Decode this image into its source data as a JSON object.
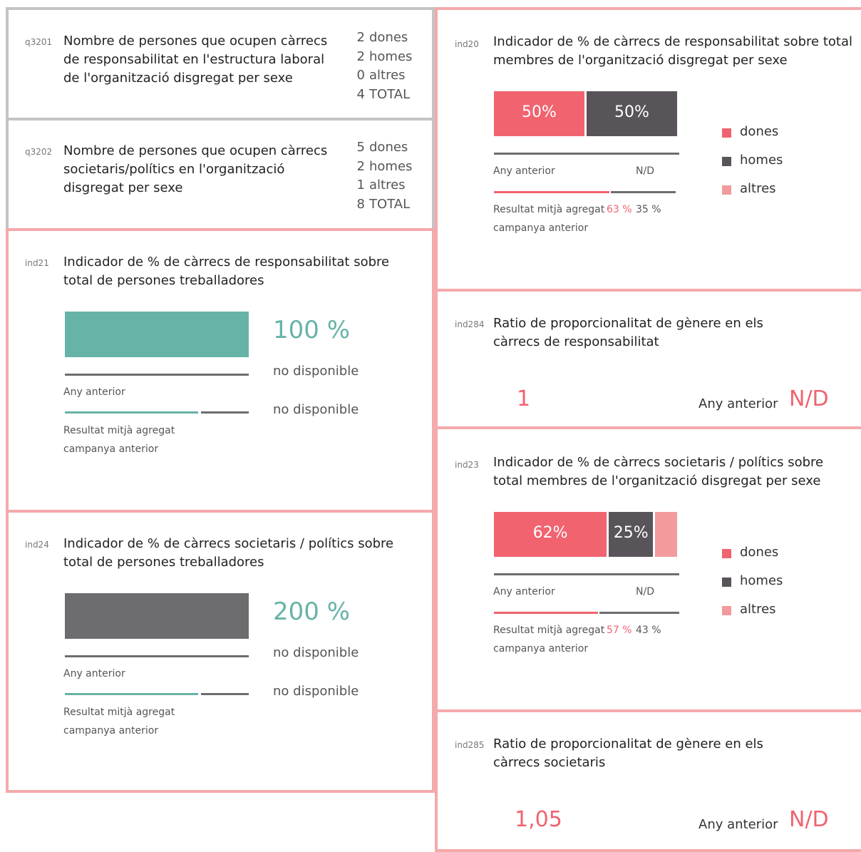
{
  "questions": [
    {
      "code": "q3201",
      "text": "Nombre de persones que ocupen càrrecs de responsabilitat en l'estructura laboral de l'organització disgregat per sexe",
      "rows": [
        {
          "value": 2,
          "label": "dones"
        },
        {
          "value": 2,
          "label": "homes"
        },
        {
          "value": 0,
          "label": "altres"
        },
        {
          "value": 4,
          "label": "TOTAL"
        }
      ]
    },
    {
      "code": "q3202",
      "text": "Nombre de persones que ocupen càrrecs societaris/polítics en l'organització disgregat per sexe",
      "rows": [
        {
          "value": 5,
          "label": "dones"
        },
        {
          "value": 2,
          "label": "homes"
        },
        {
          "value": 1,
          "label": "altres"
        },
        {
          "value": 8,
          "label": "TOTAL"
        }
      ]
    }
  ],
  "single_indicators": [
    {
      "code": "ind21",
      "title": "Indicador de % de càrrecs de responsabilitat sobre total de persones treballadores",
      "value": {
        "value": 100,
        "label": "100 %"
      },
      "color": "#67b3a8",
      "previous_year": "Any anterior",
      "previous_value": "no disponible",
      "average": "Resultat mitjà agregat",
      "average_sub": "campanya anterior",
      "average_value": "no disponible"
    },
    {
      "code": "ind24",
      "title": "Indicador de % de càrrecs societaris / polítics sobre total de persones treballadores",
      "value": {
        "value": 200,
        "label": "200 %"
      },
      "color": "#6d6d70",
      "previous_year": "Any anterior",
      "previous_value": "no disponible",
      "average": "Resultat mitjà agregat",
      "average_sub": "campanya anterior",
      "average_value": "no disponible"
    }
  ],
  "gender_indicators": [
    {
      "code": "ind20",
      "title": "Indicador de % de càrrecs de responsabilitat sobre total membres de l'organització disgregat per sexe",
      "segments": [
        {
          "name": "dones",
          "color": "#f0636f",
          "value": 50,
          "label": "50%"
        },
        {
          "name": "homes",
          "color": "#58545a",
          "value": 50,
          "label": "50%"
        },
        {
          "name": "altres",
          "color": "#f29a9c",
          "value": 0,
          "label": null
        }
      ],
      "previous_year": "Any anterior",
      "previous_value": "N/D",
      "average": "Resultat mitjà agregat",
      "average_sub": "campanya anterior",
      "average_values": [
        {
          "value": 63,
          "label": "63 %"
        },
        {
          "value": 35,
          "label": "35 %"
        }
      ]
    },
    {
      "code": "ind23",
      "title": "Indicador de % de càrrecs societaris / polítics sobre total membres de l'organització disgregat per sexe",
      "segments": [
        {
          "name": "dones",
          "color": "#f0636f",
          "value": 62,
          "label": "62%"
        },
        {
          "name": "homes",
          "color": "#58545a",
          "value": 25,
          "label": "25%"
        },
        {
          "name": "altres",
          "color": "#f29a9c",
          "value": 13,
          "label": null
        }
      ],
      "previous_year": "Any anterior",
      "previous_value": "N/D",
      "average": "Resultat mitjà agregat",
      "average_sub": "campanya anterior",
      "average_values": [
        {
          "value": 57,
          "label": "57 %"
        },
        {
          "value": 43,
          "label": "43 %"
        }
      ]
    }
  ],
  "ratios": [
    {
      "code": "ind284",
      "title": "Ratio de proporcionalitat de gènere en els càrrecs de responsabilitat",
      "value": 1,
      "previous_year": "Any anterior",
      "previous_value": "N/D"
    },
    {
      "code": "ind285",
      "title": "Ratio de proporcionalitat de gènere en els càrrecs societaris",
      "value": {
        "value": 1.05,
        "label": "1,05"
      },
      "previous_year": "Any anterior",
      "previous_value": "N/D"
    }
  ]
}
